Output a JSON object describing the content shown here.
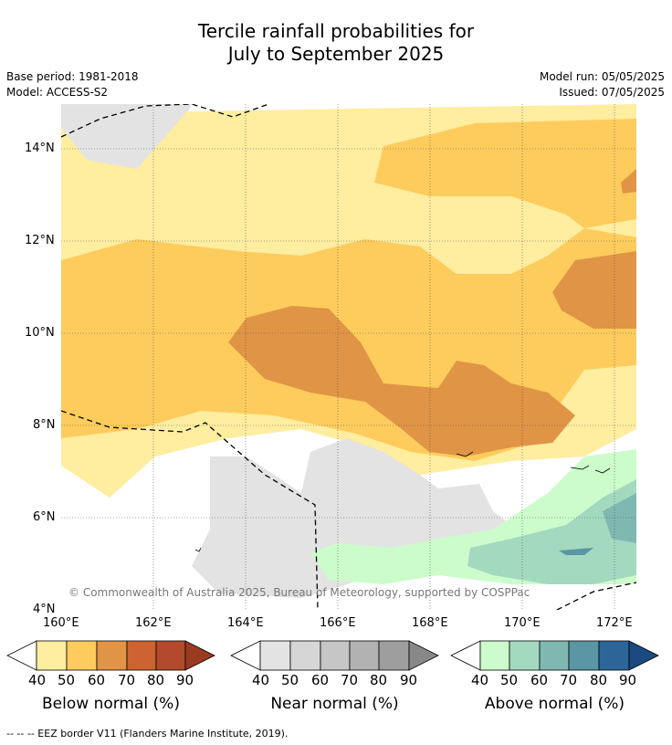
{
  "header": {
    "title_line1": "Tercile rainfall probabilities for",
    "title_line2": "July to September 2025",
    "base_period": "Base period: 1981-2018",
    "model": "Model: ACCESS-S2",
    "model_run": "Model run: 05/05/2025",
    "issued": "Issued: 07/05/2025"
  },
  "map": {
    "lat_ticks": [
      "14°N",
      "12°N",
      "10°N",
      "8°N",
      "6°N",
      "4°N"
    ],
    "lon_ticks": [
      "160°E",
      "162°E",
      "164°E",
      "166°E",
      "168°E",
      "170°E",
      "172°E"
    ],
    "extent": {
      "lon": [
        160,
        172.5
      ],
      "lat": [
        4,
        15
      ]
    },
    "copyright": "© Commonwealth of Australia 2025, Bureau of Meteorology, supported by COSPPac",
    "colors": {
      "below": [
        "#FFEDA0",
        "#FECC5C",
        "#E09446",
        "#CD6330",
        "#B24A2B",
        "#9A3A1E"
      ],
      "near": [
        "#E3E3E3",
        "#D6D6D6",
        "#C6C6C6",
        "#B2B2B2",
        "#9E9E9E",
        "#888888"
      ],
      "above": [
        "#CCFCCB",
        "#A3D9BF",
        "#7FB8B1",
        "#5A96A3",
        "#2C6699",
        "#1A4A80"
      ]
    }
  },
  "legend": {
    "below": {
      "label": "Below normal (%)",
      "ticks": [
        "40",
        "50",
        "60",
        "70",
        "80",
        "90"
      ]
    },
    "near": {
      "label": "Near normal (%)",
      "ticks": [
        "40",
        "50",
        "60",
        "70",
        "80",
        "90"
      ]
    },
    "above": {
      "label": "Above normal (%)",
      "ticks": [
        "40",
        "50",
        "60",
        "70",
        "80",
        "90"
      ]
    }
  },
  "footnote": "--  --  -- EEZ border V11 (Flanders Marine Institute, 2019)."
}
